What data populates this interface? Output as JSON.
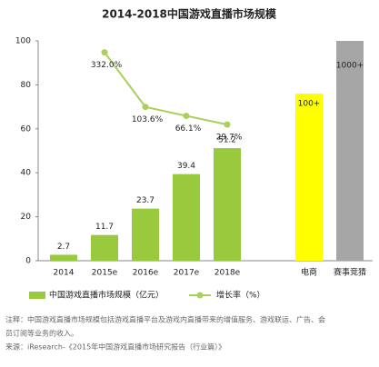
{
  "chart_data": {
    "type": "bar",
    "title": "2014-2018中国游戏直播市场规模",
    "categories": [
      "2014",
      "2015e",
      "2016e",
      "2017e",
      "2018e"
    ],
    "series": [
      {
        "name": "中国游戏直播市场规模（亿元）",
        "color": "#99c93c",
        "values": [
          2.7,
          11.7,
          23.7,
          39.4,
          51.2
        ]
      },
      {
        "name": "增长率（%）",
        "color": "#a9d05a",
        "type": "line",
        "axis": "y2",
        "values": [
          null,
          332,
          103.6,
          66.1,
          29.7
        ],
        "value_labels": [
          null,
          "332.0%",
          "103.6%",
          "66.1%",
          "29.7%"
        ]
      }
    ],
    "ylim": [
      0,
      100
    ],
    "yticks": [
      0,
      20,
      40,
      60,
      80,
      100
    ],
    "y2lim": [
      -540,
      380
    ],
    "annotations": [
      {
        "category": "电商",
        "label": "100+",
        "color": "#ffff00"
      },
      {
        "category": "赛事竞猜",
        "label": "1000+",
        "color": "#a6a6a6"
      }
    ],
    "notes": [
      "注释：中国游戏直播市场规模包括游戏直播平台及游戏内直播带来的增值服务、游戏联运、广告、会",
      "员订阅等业务的收入。",
      "来源：iResearch-《2015年中国游戏直播市场研究报告（行业篇）》"
    ]
  }
}
